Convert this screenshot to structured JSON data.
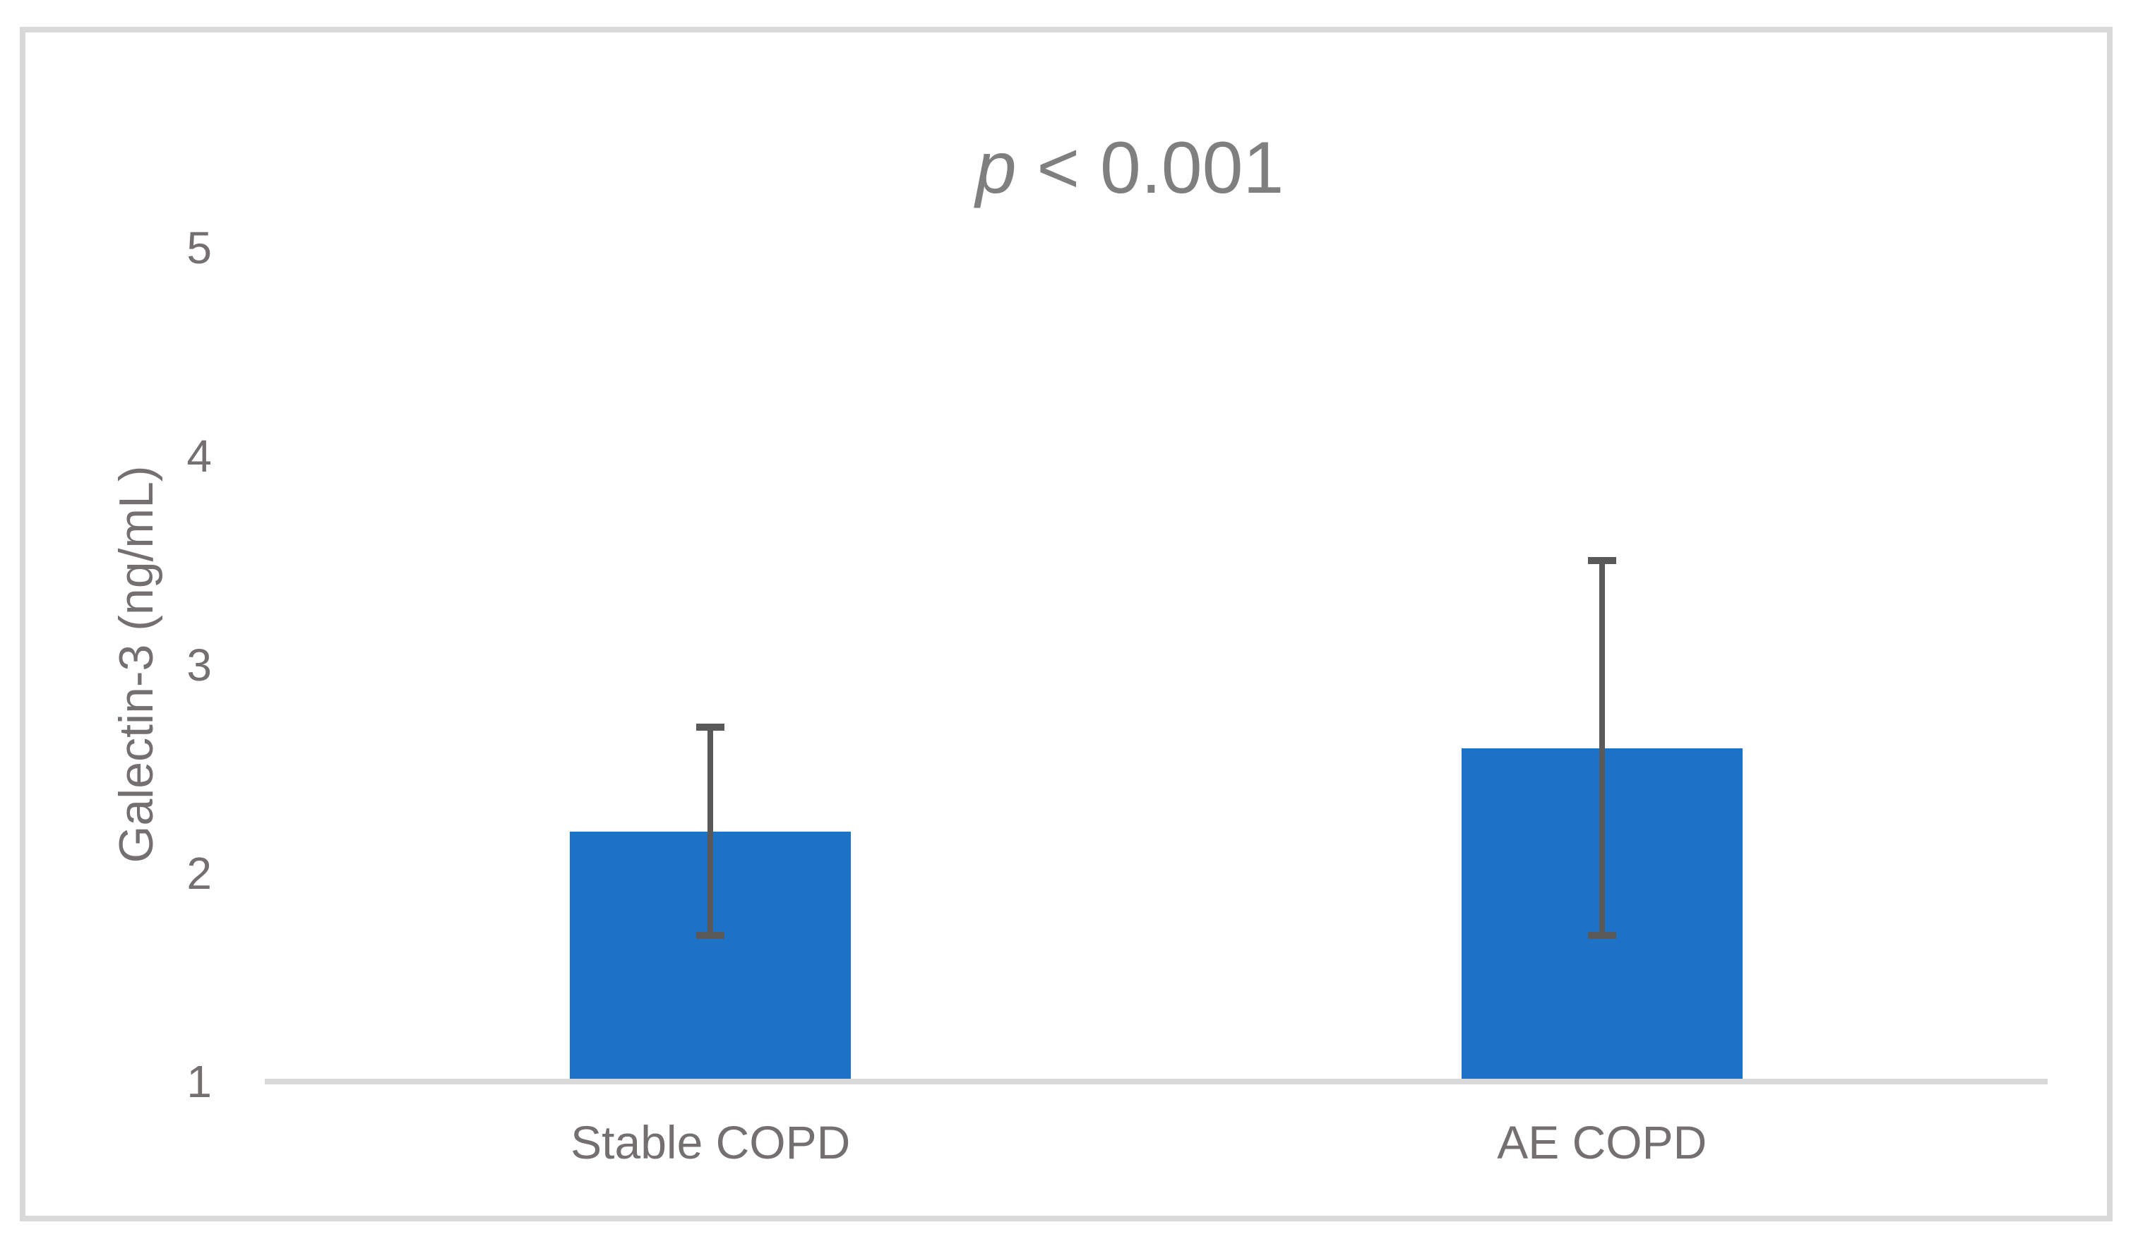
{
  "figure": {
    "title_parts": {
      "italic": "p",
      "rest": " < 0.001"
    }
  },
  "chart_data": {
    "type": "bar",
    "title": "p < 0.001",
    "categories": [
      "Stable COPD",
      "AE COPD"
    ],
    "values": [
      2.2,
      2.6
    ],
    "error_low": [
      1.7,
      1.7
    ],
    "error_high": [
      2.7,
      3.5
    ],
    "xlabel": "",
    "ylabel": "Galectin-3 (ng/mL)",
    "ylim": [
      1,
      5
    ],
    "yticks": [
      1,
      2,
      3,
      4,
      5
    ],
    "grid": false,
    "legend": "none",
    "bar_color": "#1B72C6",
    "error_color": "#595959",
    "axis_line_color": "#D9D9D9",
    "frame_color": "#D9D9D9",
    "tick_text_color": "#757070",
    "title_color": "#7F7F7F"
  }
}
